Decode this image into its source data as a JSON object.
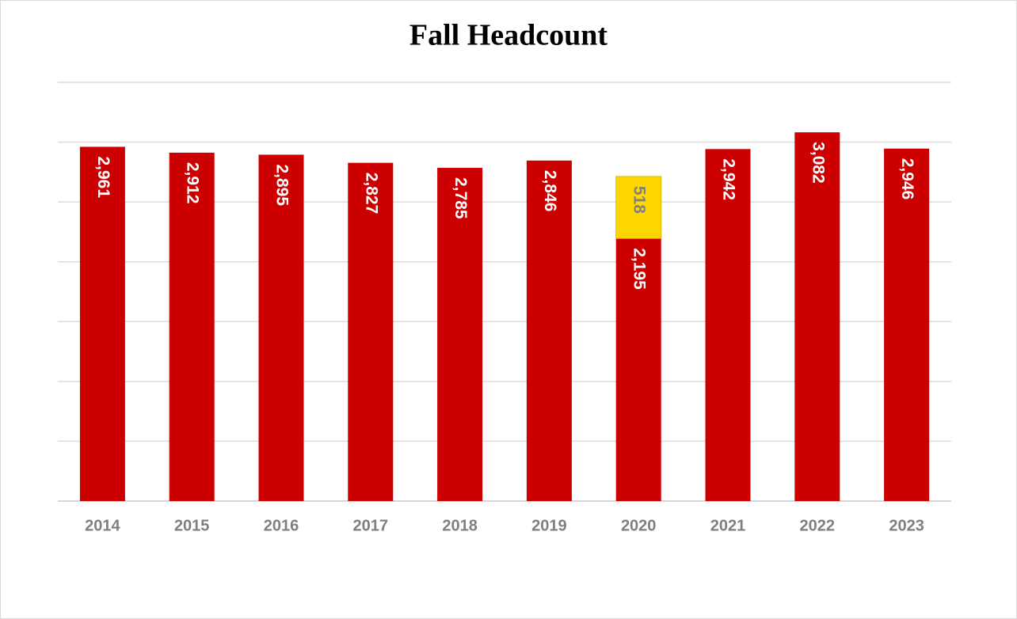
{
  "chart_data": {
    "type": "stacked_bar",
    "title": "Fall Headcount",
    "categories": [
      "2014",
      "2015",
      "2016",
      "2017",
      "2018",
      "2019",
      "2020",
      "2021",
      "2022",
      "2023"
    ],
    "series": [
      {
        "color": "#cc0000",
        "label_color": "#ffffff",
        "values": [
          2961,
          2912,
          2895,
          2827,
          2785,
          2846,
          2195,
          2942,
          3082,
          2946
        ],
        "value_labels": [
          "2,961",
          "2,912",
          "2,895",
          "2,827",
          "2,785",
          "2,846",
          "2,195",
          "2,942",
          "3,082",
          "2,946"
        ]
      },
      {
        "color": "#ffd600",
        "label_color": "#808080",
        "values": [
          null,
          null,
          null,
          null,
          null,
          null,
          518,
          null,
          null,
          null
        ]
      }
    ],
    "ylim": [
      0,
      3500
    ],
    "yticks": [
      0,
      500,
      1000,
      1500,
      2000,
      2500,
      3000,
      3500
    ],
    "grid": true
  }
}
